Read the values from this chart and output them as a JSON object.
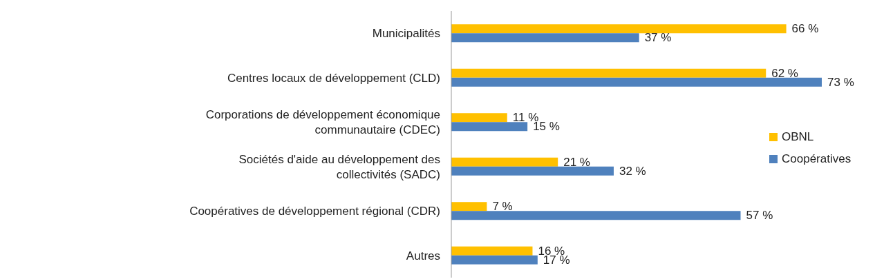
{
  "chart_data": {
    "type": "bar",
    "orientation": "horizontal",
    "categories": [
      "Municipalités",
      "Centres locaux de développement (CLD)",
      "Corporations de développement économique communautaire (CDEC)",
      "Sociétés d'aide au développement des collectivités (SADC)",
      "Coopératives de développement régional (CDR)",
      "Autres"
    ],
    "series": [
      {
        "name": "OBNL",
        "color": "#ffc000",
        "values": [
          66,
          62,
          11,
          21,
          7,
          16
        ],
        "value_labels": [
          "66 %",
          "62 %",
          "11 %",
          "21 %",
          "7 %",
          "16 %"
        ]
      },
      {
        "name": "Coopératives",
        "color": "#4f81bd",
        "values": [
          37,
          73,
          15,
          32,
          57,
          17
        ],
        "value_labels": [
          "37 %",
          "73 %",
          "15 %",
          "32 %",
          "57 %",
          "17 %"
        ]
      }
    ],
    "legend": "right"
  }
}
